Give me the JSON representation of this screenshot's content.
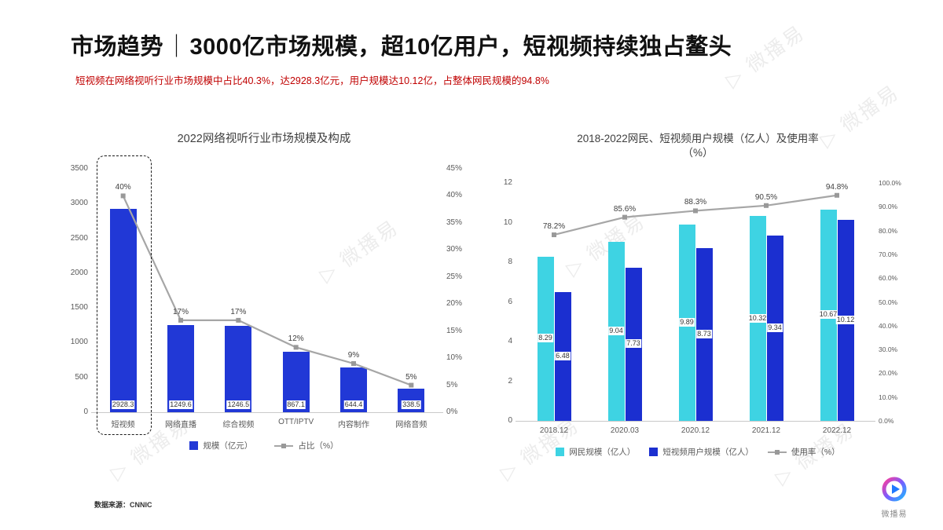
{
  "header": {
    "title_bold": "市场趋势",
    "title_sep": "｜",
    "title_rest": "3000亿市场规模，超10亿用户，短视频持续独占鳌头",
    "subtitle": "短视频在网络视听行业市场规模中占比40.3%，达2928.3亿元，用户规模达10.12亿，占整体网民规模的94.8%"
  },
  "chart_data": [
    {
      "type": "bar",
      "subtype": "bar-with-line",
      "title": "2022网络视听行业市场规模及构成",
      "categories": [
        "短视频",
        "网络直播",
        "综合视频",
        "OTT/IPTV",
        "内容制作",
        "网络音频"
      ],
      "bar_series": {
        "name": "规模（亿元）",
        "values": [
          2928.3,
          1249.6,
          1246.5,
          867.1,
          644.4,
          338.5
        ],
        "color": "#2138d6"
      },
      "line_series": {
        "name": "占比（%）",
        "values": [
          40,
          17,
          17,
          12,
          9,
          5
        ],
        "labels": [
          "40%",
          "17%",
          "17%",
          "12%",
          "9%",
          "5%"
        ],
        "color": "#a6a6a6"
      },
      "y_left": {
        "min": 0,
        "max": 3500,
        "ticks": [
          "3500",
          "3000",
          "2500",
          "2000",
          "1500",
          "1000",
          "500",
          "0"
        ]
      },
      "y_right": {
        "min": 0,
        "max": 45,
        "ticks": [
          "45%",
          "40%",
          "35%",
          "30%",
          "25%",
          "20%",
          "15%",
          "10%",
          "5%",
          "0%"
        ]
      },
      "highlight_category": "短视频",
      "grid": false,
      "legend_position": "bottom"
    },
    {
      "type": "bar",
      "subtype": "grouped-bar-with-line",
      "title": "2018-2022网民、短视频用户规模（亿人）及使用率（%）",
      "title_line1": "2018-2022网民、短视频用户规模（亿人）及使用率",
      "title_line2": "（%）",
      "categories": [
        "2018.12",
        "2020.03",
        "2020.12",
        "2021.12",
        "2022.12"
      ],
      "series": [
        {
          "name": "网民规模（亿人）",
          "values": [
            8.29,
            9.04,
            9.89,
            10.32,
            10.67
          ],
          "color": "#3ed3e3"
        },
        {
          "name": "短视频用户规模（亿人）",
          "values": [
            6.48,
            7.73,
            8.73,
            9.34,
            10.12
          ],
          "color": "#1b2fd0"
        }
      ],
      "line_series": {
        "name": "使用率（%）",
        "values": [
          78.2,
          85.6,
          88.3,
          90.5,
          94.8
        ],
        "labels": [
          "78.2%",
          "85.6%",
          "88.3%",
          "90.5%",
          "94.8%"
        ],
        "color": "#a6a6a6"
      },
      "y_left": {
        "min": 0,
        "max": 12,
        "ticks": [
          "12",
          "10",
          "8",
          "6",
          "4",
          "2",
          "0"
        ]
      },
      "y_right": {
        "min": 0,
        "max": 100,
        "ticks": [
          "100.0%",
          "90.0%",
          "80.0%",
          "70.0%",
          "60.0%",
          "50.0%",
          "40.0%",
          "30.0%",
          "20.0%",
          "10.0%",
          "0.0%"
        ]
      },
      "grid": false,
      "legend_position": "bottom"
    }
  ],
  "footer": {
    "source": "数据来源：CNNIC"
  },
  "brand": {
    "name": "微播易"
  },
  "icons": {
    "play_icon": "▷"
  },
  "colors": {
    "bar_blue": "#2138d6",
    "cyan": "#3ed3e3",
    "dark_blue": "#1b2fd0",
    "line_gray": "#a6a6a6",
    "accent_red": "#c00000"
  }
}
